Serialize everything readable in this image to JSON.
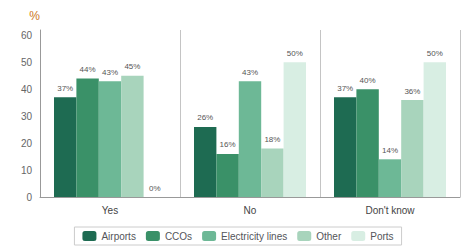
{
  "chart_data": {
    "type": "bar",
    "categories": [
      "Yes",
      "No",
      "Don't know"
    ],
    "series": [
      {
        "name": "Airports",
        "color": "#1e6b52",
        "values": [
          37,
          26,
          37
        ],
        "value_labels": [
          "37%",
          "26%",
          "37%"
        ]
      },
      {
        "name": "CCOs",
        "color": "#3a9168",
        "values": [
          44,
          16,
          40
        ],
        "value_labels": [
          "44%",
          "16%",
          "40%"
        ]
      },
      {
        "name": "Electricity lines",
        "color": "#6db896",
        "values": [
          43,
          43,
          14
        ],
        "value_labels": [
          "43%",
          "43%",
          "14%"
        ]
      },
      {
        "name": "Other",
        "color": "#a8d4bc",
        "values": [
          45,
          18,
          36
        ],
        "value_labels": [
          "45%",
          "18%",
          "36%"
        ]
      },
      {
        "name": "Ports",
        "color": "#d8eee3",
        "values": [
          0,
          50,
          50
        ],
        "value_labels": [
          "0%",
          "50%",
          "50%"
        ]
      }
    ],
    "ylabel": "%",
    "ylim": [
      0,
      62
    ],
    "yticks": [
      0,
      10,
      20,
      30,
      40,
      50,
      60
    ],
    "grid": false,
    "legend": "bottom",
    "data_labels": true
  }
}
